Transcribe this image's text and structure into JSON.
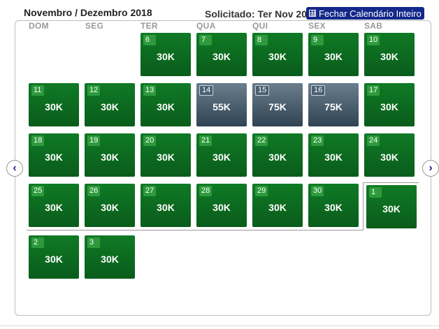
{
  "header": {
    "title": "Novembro / Dezembro 2018",
    "requested": "Solicitado: Ter Nov 20",
    "close_label": "Fechar Calendário Inteiro"
  },
  "weekdays": [
    "DOM",
    "SEG",
    "TER",
    "QUA",
    "QUI",
    "SEX",
    "SAB"
  ],
  "days": [
    {
      "day": "6",
      "price": "30K",
      "level": "low"
    },
    {
      "day": "7",
      "price": "30K",
      "level": "low"
    },
    {
      "day": "8",
      "price": "30K",
      "level": "low"
    },
    {
      "day": "9",
      "price": "30K",
      "level": "low"
    },
    {
      "day": "10",
      "price": "30K",
      "level": "low"
    },
    {
      "day": "11",
      "price": "30K",
      "level": "low"
    },
    {
      "day": "12",
      "price": "30K",
      "level": "low"
    },
    {
      "day": "13",
      "price": "30K",
      "level": "low"
    },
    {
      "day": "14",
      "price": "55K",
      "level": "high"
    },
    {
      "day": "15",
      "price": "75K",
      "level": "high"
    },
    {
      "day": "16",
      "price": "75K",
      "level": "high"
    },
    {
      "day": "17",
      "price": "30K",
      "level": "low"
    },
    {
      "day": "18",
      "price": "30K",
      "level": "low"
    },
    {
      "day": "19",
      "price": "30K",
      "level": "low"
    },
    {
      "day": "20",
      "price": "30K",
      "level": "low"
    },
    {
      "day": "21",
      "price": "30K",
      "level": "low"
    },
    {
      "day": "22",
      "price": "30K",
      "level": "low"
    },
    {
      "day": "23",
      "price": "30K",
      "level": "low"
    },
    {
      "day": "24",
      "price": "30K",
      "level": "low"
    },
    {
      "day": "25",
      "price": "30K",
      "level": "low"
    },
    {
      "day": "26",
      "price": "30K",
      "level": "low"
    },
    {
      "day": "27",
      "price": "30K",
      "level": "low"
    },
    {
      "day": "28",
      "price": "30K",
      "level": "low"
    },
    {
      "day": "29",
      "price": "30K",
      "level": "low"
    },
    {
      "day": "30",
      "price": "30K",
      "level": "low"
    },
    {
      "day": "1",
      "price": "30K",
      "level": "low"
    },
    {
      "day": "2",
      "price": "30K",
      "level": "low"
    },
    {
      "day": "3",
      "price": "30K",
      "level": "low"
    }
  ],
  "nav": {
    "prev_icon": "chevron-left-icon",
    "next_icon": "chevron-right-icon",
    "prev_glyph": "‹",
    "next_glyph": "›"
  },
  "colors": {
    "low": "#0a6a1f",
    "high": "#3d5060",
    "accent": "#14288a"
  }
}
